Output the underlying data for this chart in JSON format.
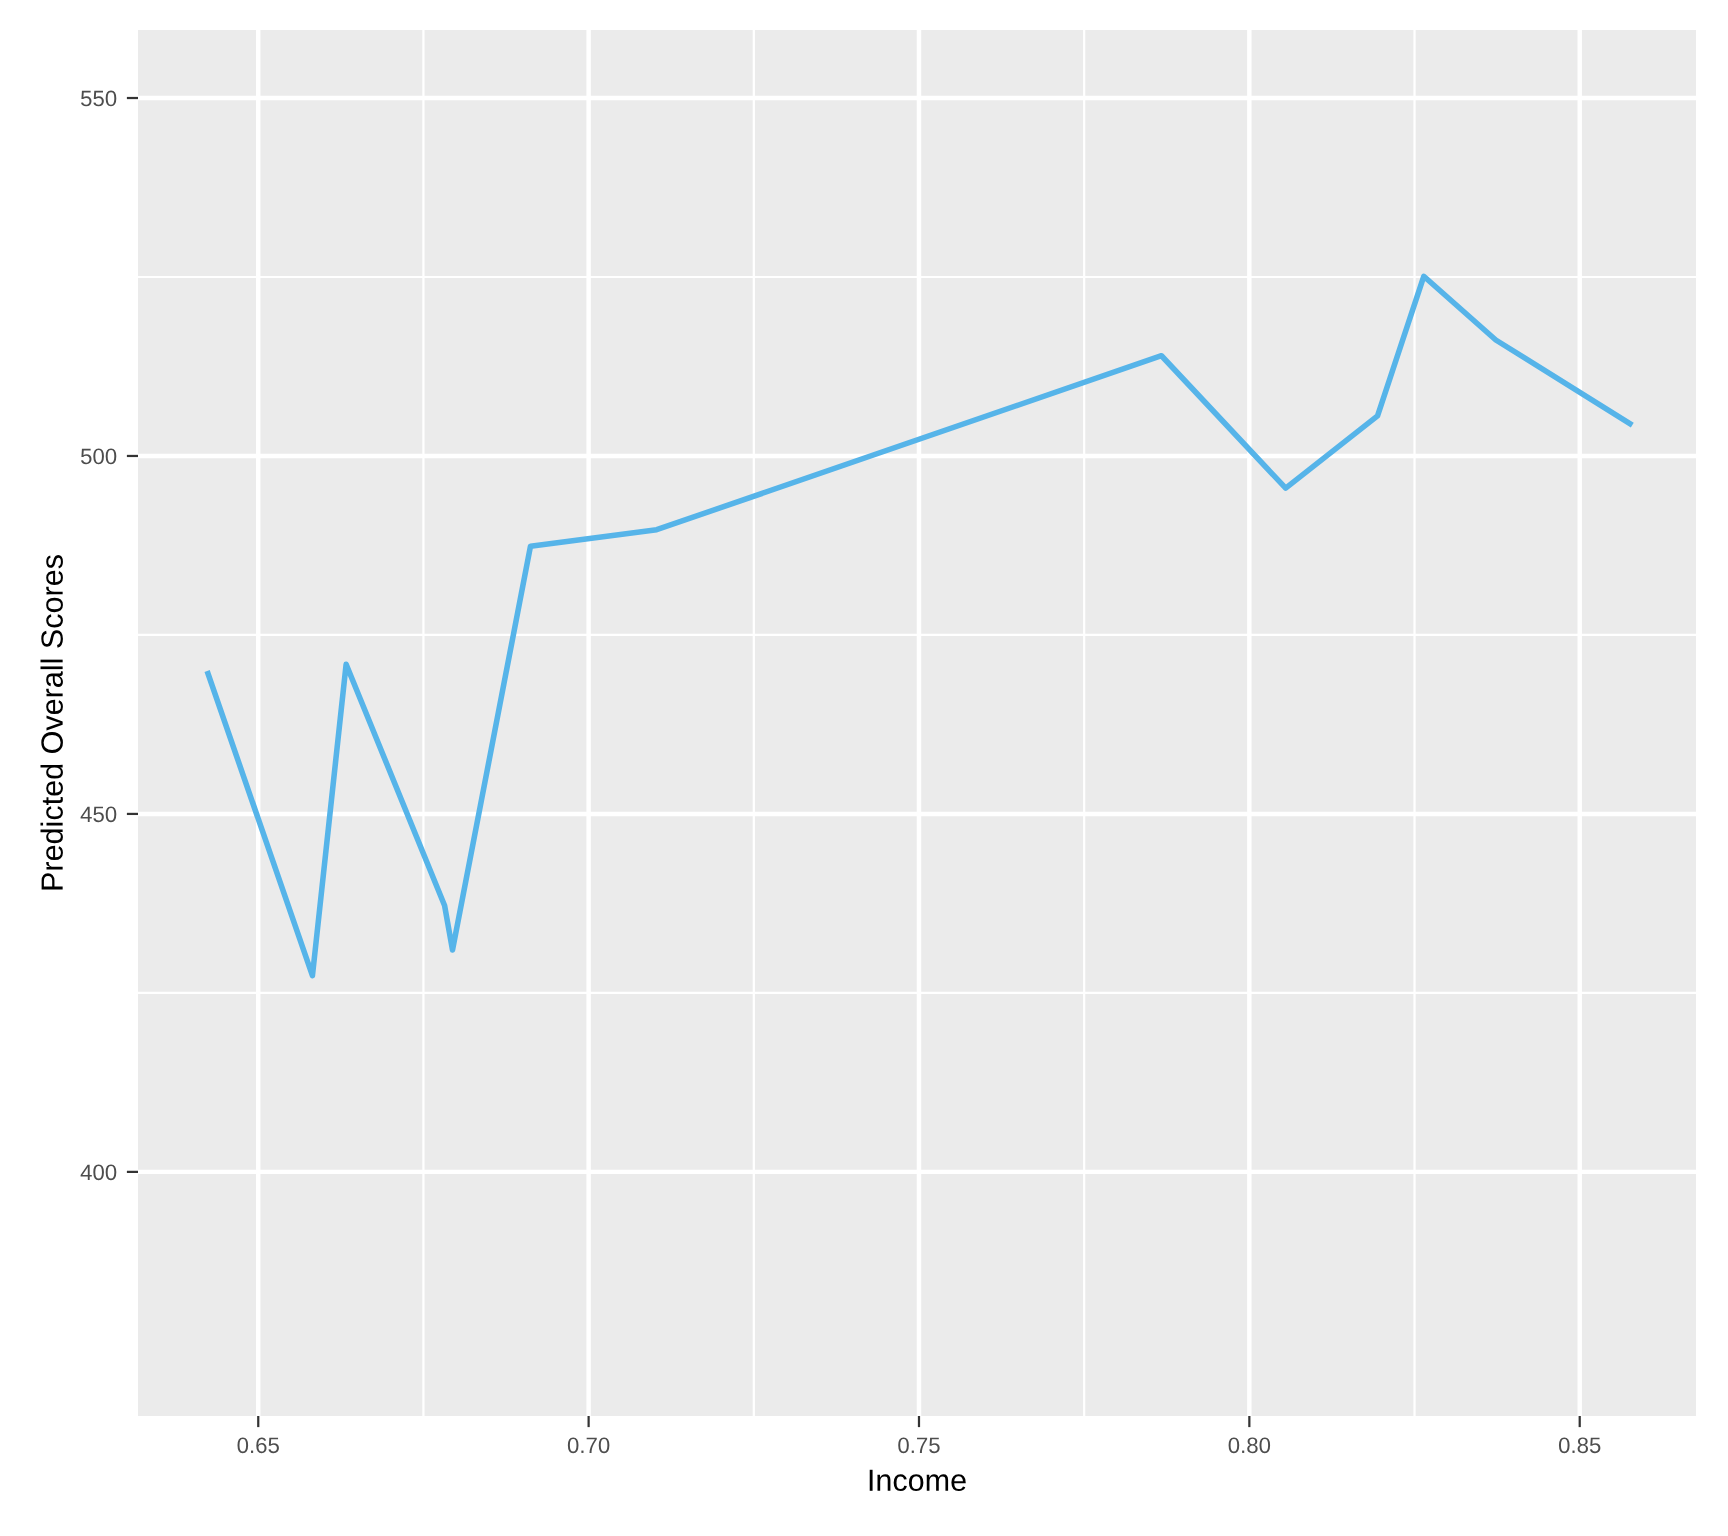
{
  "chart_data": {
    "type": "line",
    "xlabel": "Income",
    "ylabel": "Predicted Overall Scores",
    "x": [
      0.6424,
      0.6582,
      0.6633,
      0.6782,
      0.6794,
      0.6912,
      0.7103,
      0.7867,
      0.8055,
      0.8194,
      0.8264,
      0.8373,
      0.8576
    ],
    "series": [
      {
        "color": "#56b4e9",
        "values": [
          469.6,
          427.4,
          470.9,
          437.2,
          431.0,
          487.4,
          489.7,
          514.0,
          495.5,
          505.6,
          525.1,
          516.2,
          504.5
        ]
      }
    ],
    "xlim": [
      0.6318,
      0.8676
    ],
    "ylim": [
      365.9,
      559.5
    ],
    "xticks": [
      {
        "value": 0.65,
        "label": "0.65"
      },
      {
        "value": 0.7,
        "label": "0.70"
      },
      {
        "value": 0.75,
        "label": "0.75"
      },
      {
        "value": 0.8,
        "label": "0.80"
      },
      {
        "value": 0.85,
        "label": "0.85"
      }
    ],
    "yticks": [
      400,
      450,
      500,
      550
    ],
    "grid": true,
    "marker": "none",
    "line_style": "solid"
  }
}
